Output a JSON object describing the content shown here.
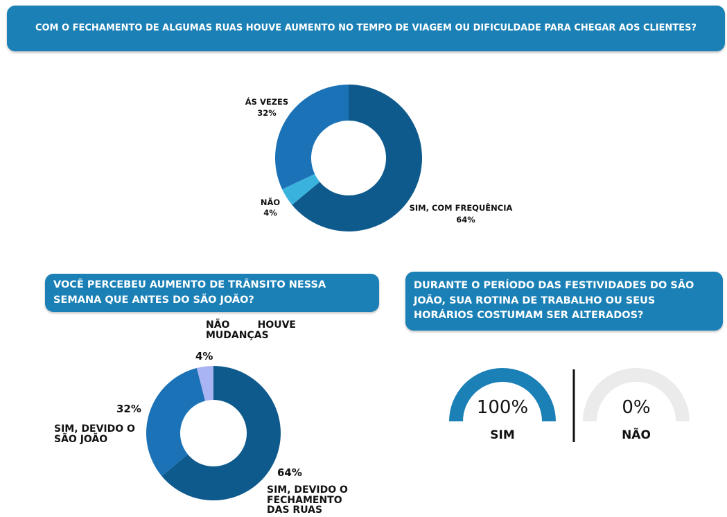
{
  "chart_data": [
    {
      "type": "donut",
      "title": "COM O FECHAMENTO DE ALGUMAS RUAS HOUVE AUMENTO NO TEMPO DE VIAGEM OU DIFICULDADE PARA CHEGAR AOS CLIENTES?",
      "categories": [
        "SIM, COM FREQUÊNCIA",
        "NÃO",
        "ÁS VEZES"
      ],
      "values": [
        64,
        4,
        32
      ],
      "value_labels": [
        "64%",
        "4%",
        "32%"
      ],
      "colors": [
        "#0e5a8c",
        "#3ab2de",
        "#1b72b6"
      ]
    },
    {
      "type": "donut",
      "title": "VOCÊ PERCEBEU AUMENTO DE TRÂNSITO NESSA SEMANA QUE ANTES DO SÃO JOÃO?",
      "categories": [
        "SIM, DEVIDO O FECHAMENTO DAS RUAS",
        "SIM, DEVIDO O SÃO JOÃO",
        "NÃO HOUVE MUDANÇAS"
      ],
      "values": [
        64,
        32,
        4
      ],
      "value_labels": [
        "64%",
        "32%",
        "4%"
      ],
      "colors": [
        "#0e5a8c",
        "#1b72b6",
        "#a9b4f4"
      ]
    },
    {
      "type": "gauge",
      "title": "DURANTE O PERÍODO DAS FESTIVIDADES DO SÃO JOÃO, SUA ROTINA DE TRABALHO OU SEUS HORÁRIOS COSTUMAM SER ALTERADOS?",
      "categories": [
        "SIM",
        "NÃO"
      ],
      "values": [
        100,
        0
      ],
      "value_labels": [
        "100%",
        "0%"
      ],
      "ylim": [
        0,
        100
      ],
      "color": "#1a80b6",
      "track_color": "#ebebeb"
    }
  ]
}
